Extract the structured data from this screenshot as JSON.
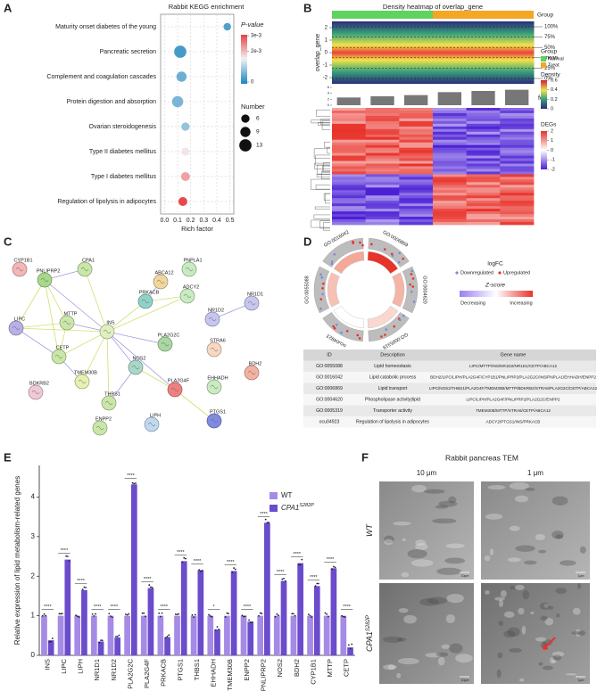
{
  "panel_labels": [
    "A",
    "B",
    "C",
    "D",
    "E",
    "F"
  ],
  "chart_data": [
    {
      "type": "scatter",
      "title": "Rabbit KEGG enrichment",
      "categories": [
        "Maturity onset diabetes of the young",
        "Pancreatic secretion",
        "Complement and coagulation cascades",
        "Protein digestion and absorption",
        "Ovarian steroidogenesis",
        "Type II diabetes mellitus",
        "Type I diabetes mellitus",
        "Regulation of lipolysis in adipocytes"
      ],
      "values": [
        0.48,
        0.12,
        0.13,
        0.1,
        0.16,
        0.16,
        0.16,
        0.14
      ],
      "sizes": [
        5,
        13,
        9,
        11,
        6,
        6,
        7,
        7
      ],
      "pvalues": [
        0.0003,
        0.0002,
        0.0005,
        0.0006,
        0.0008,
        0.0016,
        0.0022,
        0.003
      ],
      "xlabel": "Rich factor",
      "xlim": [
        -0.03,
        0.53
      ],
      "xticks": [
        {
          "value": 0,
          "label": "0.0"
        },
        0.1,
        0.2,
        0.3,
        0.4,
        0.5
      ],
      "grid": true,
      "color_label": "P-value",
      "colorlim": [
        0,
        0.003
      ],
      "colors": [
        "#2b8cc4",
        "#f2f2f2",
        "#e8474c"
      ],
      "colorticks": [
        {
          "value": 0.003,
          "label": "3e-3"
        },
        {
          "value": 0.002,
          "label": "2e-3"
        },
        0
      ],
      "size_label": "Number",
      "size_ticks": [
        6,
        9,
        13
      ]
    },
    {
      "type": "bar",
      "ylabel": "Relative expression of lipid metabolism-related genes",
      "categories": [
        "INS",
        "LIPC",
        "LIPH",
        "NR1D1",
        "NR1D2",
        "PLA2G2C",
        "PLA2G4F",
        "PRKACB",
        "PTGS1",
        "THBS1",
        "EHHADH",
        "TMEM30B",
        "ENPP2",
        "PNLIPRP2",
        "NOS2",
        "BDH2",
        "CYP1B1",
        "MTTP",
        "CETP"
      ],
      "ylim": [
        0,
        4.8
      ],
      "yticks": [
        0,
        1,
        2,
        3,
        4
      ],
      "legend": "upper right",
      "series": [
        {
          "name": "WT",
          "color": "#a58be6",
          "values": [
            1,
            1,
            1,
            1,
            1,
            1,
            1,
            1,
            1,
            1,
            1,
            1,
            1,
            1,
            1,
            1,
            1,
            1,
            1
          ]
        },
        {
          "name": "CPA1",
          "superscript": "S282P",
          "color": "#6b4ccc",
          "values": [
            0.38,
            2.42,
            1.65,
            0.35,
            0.45,
            4.32,
            1.7,
            0.46,
            2.38,
            2.15,
            0.65,
            2.13,
            0.85,
            3.35,
            1.88,
            2.33,
            1.75,
            2.2,
            0.2
          ]
        }
      ],
      "significance": [
        "****",
        "****",
        "****",
        "****",
        "****",
        "****",
        "****",
        "****",
        "****",
        "****",
        "*",
        "****",
        "****",
        "****",
        "****",
        "****",
        "****",
        "****",
        "****"
      ]
    }
  ],
  "density_heatmap": {
    "title": "Density heatmap of overlap_gene",
    "ylabel": "overlap_gene",
    "ylim": [
      -2.5,
      2.5
    ],
    "yticks": [
      2,
      1,
      0,
      -1,
      -2
    ],
    "quantiles": [
      "100%",
      "75%",
      "50%",
      "mean",
      "25%",
      "0%"
    ],
    "group_label": "Group",
    "groups": [
      {
        "name": "Normal",
        "color": "#5ed35e"
      },
      {
        "name": "Treat",
        "color": "#f5a623"
      }
    ],
    "bar_label": "foo",
    "bar_values": [
      2.6,
      3.0,
      3.4,
      4.4,
      4.8,
      5.2
    ],
    "bar_lim": [
      0,
      6
    ],
    "bar_ticks": [
      0,
      2,
      4,
      6
    ],
    "density_label": "Density",
    "density_ticks": [
      0.6,
      0.4,
      0.2,
      0
    ],
    "deg_label": "DEGs",
    "deg_ticks": [
      2,
      1,
      0,
      -1,
      -2
    ]
  },
  "network": {
    "nodes": [
      "CYP1B1",
      "PNLIPRP2",
      "CPA1",
      "ABCA12",
      "PNPLA1",
      "ADCY2",
      "PRKACB",
      "NR1D1",
      "NR1D2",
      "LIPC",
      "MTTP",
      "INS",
      "STRA6",
      "PLA2G2C",
      "BDH2",
      "CETP",
      "NOS2",
      "EHHADH",
      "TMEM30B",
      "PLA2G4F",
      "THBS1",
      "BDKRB2",
      "ENPP2",
      "LIPH",
      "PTGS1"
    ]
  },
  "go_circle": {
    "logfc_label": "logFC",
    "legend": [
      "Downregulated",
      "Upregulated"
    ],
    "zscore_label": "Z-score",
    "zscore_ends": [
      "Decreasing",
      "Increasing"
    ]
  },
  "go_table": {
    "header": [
      "ID",
      "Description",
      "Gene name"
    ],
    "rows": [
      [
        "GO:0055088",
        "Lipid homeostasis",
        "LIPC/MTTP/INS/NR1D2/NR1D1/CETP/ABCA12"
      ],
      [
        "GO:0016042",
        "Lipid catabolic process",
        "BDH2/LIPC/LIPH/PLA2G4F/CYP1B1/PNLIPRP2/PLA2G2C/INS/PNPLA1/EHHADH/ENPP2"
      ],
      [
        "GO:0006869",
        "Lipid transport",
        "LIPC/NOS2/THBS1/PLA2G4F/TMEM30B/MTTP/BDKRB2/STRA6/PLA2G2C/CETP/ABCA12"
      ],
      [
        "GO:0004620",
        "Phospholipase activity|lipid",
        "LIPC/LIPH/PLA2G4F/PNLIPRP2/PLA2G2C/ENPP2"
      ],
      [
        "GO:0005319",
        "Transporter activity",
        "TMEM30B/MTTP/STRA6/CETP/ABCA12"
      ],
      [
        "ocu04923",
        "Regulation of lipolysis in adipocytes",
        "ADCY2/PTGS1/INS/PRKACB"
      ]
    ]
  },
  "tem": {
    "title": "Rabbit pancreas TEM",
    "columns": [
      "10 μm",
      "1 μm"
    ],
    "rows": [
      {
        "name": "WT"
      },
      {
        "name": "CPA1",
        "superscript": "S282P"
      }
    ],
    "scale_labels": [
      "10μm",
      "1μm"
    ]
  }
}
